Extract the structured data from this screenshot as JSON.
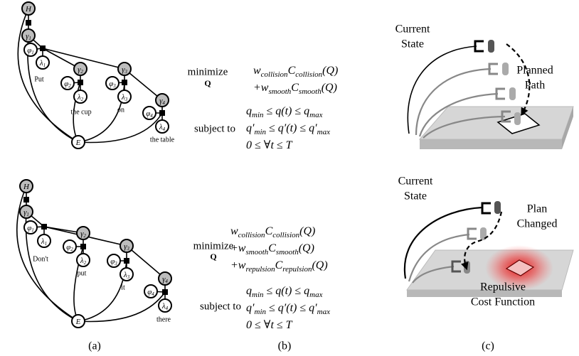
{
  "panel_a": {
    "graphs": [
      {
        "nodes": [
          {
            "base": "H"
          },
          {
            "base": "γ",
            "sub": "1"
          },
          {
            "base": "φ",
            "sub": "1"
          },
          {
            "base": "λ",
            "sub": "1"
          },
          {
            "base": "γ",
            "sub": "2"
          },
          {
            "base": "φ",
            "sub": "2"
          },
          {
            "base": "λ",
            "sub": "2"
          },
          {
            "base": "γ",
            "sub": "3"
          },
          {
            "base": "φ",
            "sub": "3"
          },
          {
            "base": "λ",
            "sub": "3"
          },
          {
            "base": "γ",
            "sub": "4"
          },
          {
            "base": "φ",
            "sub": "4"
          },
          {
            "base": "λ",
            "sub": "4"
          },
          {
            "base": "E"
          }
        ],
        "words": [
          "Put",
          "the cup",
          "on",
          "the table"
        ]
      },
      {
        "nodes": [
          {
            "base": "H"
          },
          {
            "base": "γ",
            "sub": "1"
          },
          {
            "base": "φ",
            "sub": "1"
          },
          {
            "base": "λ",
            "sub": "1"
          },
          {
            "base": "γ",
            "sub": "2"
          },
          {
            "base": "φ",
            "sub": "2"
          },
          {
            "base": "λ",
            "sub": "2"
          },
          {
            "base": "γ",
            "sub": "3"
          },
          {
            "base": "φ",
            "sub": "3"
          },
          {
            "base": "λ",
            "sub": "3"
          },
          {
            "base": "γ",
            "sub": "4"
          },
          {
            "base": "φ",
            "sub": "4"
          },
          {
            "base": "λ",
            "sub": "4"
          },
          {
            "base": "E"
          }
        ],
        "words": [
          "Don't",
          "put",
          "it",
          "there"
        ]
      }
    ]
  },
  "panel_b": {
    "problems": [
      {
        "objective_label": "minimize",
        "objective_var": "Q",
        "objective": [
          [
            {
              "t": "w"
            },
            {
              "sub": "collision"
            },
            {
              "t": "C"
            },
            {
              "sub": "collision"
            },
            {
              "t": "(Q)"
            }
          ],
          [
            {
              "t": "+w"
            },
            {
              "sub": "smooth"
            },
            {
              "t": "C"
            },
            {
              "sub": "smooth"
            },
            {
              "t": "(Q)"
            }
          ]
        ],
        "constraint_label": "subject to",
        "constraints": [
          [
            {
              "t": "q"
            },
            {
              "sub": "min"
            },
            {
              "t": " ≤ q(t) ≤ q"
            },
            {
              "sub": "max"
            }
          ],
          [
            {
              "t": "q′"
            },
            {
              "sub": "min"
            },
            {
              "t": " ≤ q′(t) ≤ q′"
            },
            {
              "sub": "max"
            }
          ],
          [
            {
              "t": "0 ≤ ∀t ≤ T"
            }
          ]
        ]
      },
      {
        "objective_label": "minimize",
        "objective_var": "Q",
        "objective": [
          [
            {
              "t": "w"
            },
            {
              "sub": "collision"
            },
            {
              "t": "C"
            },
            {
              "sub": "collision"
            },
            {
              "t": "(Q)"
            }
          ],
          [
            {
              "t": "+w"
            },
            {
              "sub": "smooth"
            },
            {
              "t": "C"
            },
            {
              "sub": "smooth"
            },
            {
              "t": "(Q)"
            }
          ],
          [
            {
              "t": "+w"
            },
            {
              "sub": "repulsion"
            },
            {
              "t": "C"
            },
            {
              "sub": "repulsion"
            },
            {
              "t": "(Q)"
            }
          ]
        ],
        "constraint_label": "subject to",
        "constraints": [
          [
            {
              "t": "q"
            },
            {
              "sub": "min"
            },
            {
              "t": " ≤ q(t) ≤ q"
            },
            {
              "sub": "max"
            }
          ],
          [
            {
              "t": "q′"
            },
            {
              "sub": "min"
            },
            {
              "t": " ≤ q′(t) ≤ q′"
            },
            {
              "sub": "max"
            }
          ],
          [
            {
              "t": "0 ≤ ∀t ≤ T"
            }
          ]
        ]
      }
    ]
  },
  "panel_c": {
    "scenes": [
      {
        "labels": [
          [
            "Current",
            "State"
          ],
          [
            "Planned",
            "Path"
          ]
        ]
      },
      {
        "labels": [
          [
            "Current",
            "State"
          ],
          [
            "Plan",
            "Changed"
          ],
          [
            "Repulsive",
            "Cost Function"
          ]
        ]
      }
    ]
  },
  "captions": [
    "(a)",
    "(b)",
    "(c)"
  ]
}
